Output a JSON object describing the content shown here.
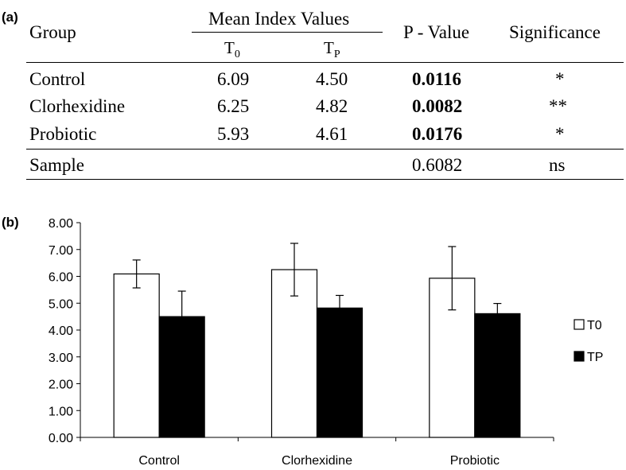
{
  "table": {
    "panel_label": "(a)",
    "headers": {
      "group": "Group",
      "mean_index": "Mean Index Values",
      "t0": "T",
      "t0_sub": "0",
      "tp": "T",
      "tp_sub": "P",
      "p_value": "P - Value",
      "significance": "Significance"
    },
    "rows": [
      {
        "group": "Control",
        "t0": "6.09",
        "tp": "4.50",
        "p": "0.0116",
        "sig": "*"
      },
      {
        "group": "Clorhexidine",
        "t0": "6.25",
        "tp": "4.82",
        "p": "0.0082",
        "sig": "**"
      },
      {
        "group": "Probiotic",
        "t0": "5.93",
        "tp": "4.61",
        "p": "0.0176",
        "sig": "*"
      }
    ],
    "sample_row": {
      "group": "Sample",
      "p": "0.6082",
      "sig": "ns"
    }
  },
  "chart_data": {
    "type": "bar",
    "panel_label": "(b)",
    "categories": [
      "Control",
      "Clorhexidine",
      "Probiotic"
    ],
    "series": [
      {
        "name": "T0",
        "values": [
          6.09,
          6.25,
          5.93
        ],
        "errors": [
          0.52,
          0.98,
          1.18
        ],
        "color": "#ffffff"
      },
      {
        "name": "TP",
        "values": [
          4.5,
          4.82,
          4.61
        ],
        "errors": [
          0.95,
          0.47,
          0.38
        ],
        "color": "#000000"
      }
    ],
    "yticks": [
      "0.00",
      "1.00",
      "2.00",
      "3.00",
      "4.00",
      "5.00",
      "6.00",
      "7.00",
      "8.00"
    ],
    "ylim": [
      0,
      8
    ],
    "legend_position": "right"
  }
}
